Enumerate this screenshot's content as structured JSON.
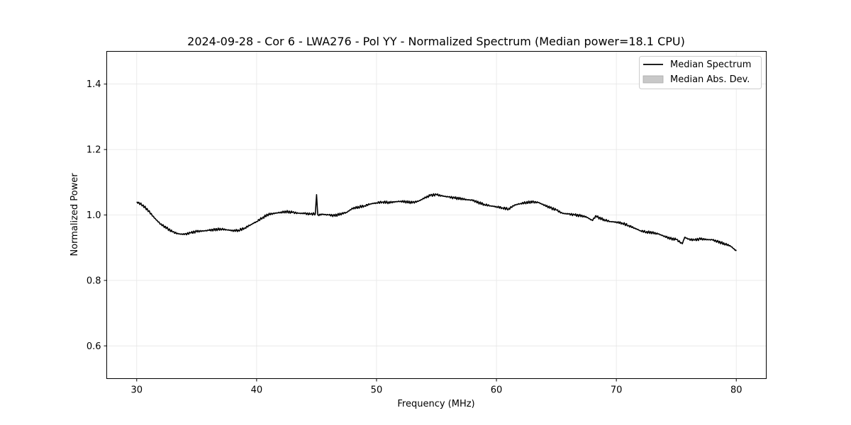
{
  "chart_data": {
    "type": "line",
    "title": "2024-09-28 - Cor 6 - LWA276 - Pol YY - Normalized Spectrum (Median power=18.1 CPU)",
    "xlabel": "Frequency (MHz)",
    "ylabel": "Normalized Power",
    "xlim": [
      27.5,
      82.5
    ],
    "ylim": [
      0.5,
      1.5
    ],
    "xticks": [
      30,
      40,
      50,
      60,
      70,
      80
    ],
    "yticks": [
      0.6,
      0.8,
      1.0,
      1.2,
      1.4
    ],
    "ytick_labels": [
      "0.6",
      "0.8",
      "1.0",
      "1.2",
      "1.4"
    ],
    "grid": true,
    "legend_position": "top-right",
    "legend": [
      {
        "label": "Median Spectrum",
        "kind": "line",
        "color": "#000000"
      },
      {
        "label": "Median Abs. Dev.",
        "kind": "band",
        "color": "#c8c8c8"
      }
    ],
    "series": [
      {
        "name": "Median Spectrum",
        "color": "#000000",
        "points": [
          [
            30.0,
            1.04
          ],
          [
            30.5,
            1.03
          ],
          [
            31.0,
            1.012
          ],
          [
            31.5,
            0.99
          ],
          [
            32.0,
            0.972
          ],
          [
            32.5,
            0.96
          ],
          [
            33.0,
            0.948
          ],
          [
            33.5,
            0.942
          ],
          [
            34.0,
            0.941
          ],
          [
            34.5,
            0.945
          ],
          [
            35.0,
            0.95
          ],
          [
            35.5,
            0.951
          ],
          [
            36.0,
            0.953
          ],
          [
            36.5,
            0.955
          ],
          [
            37.0,
            0.957
          ],
          [
            37.5,
            0.955
          ],
          [
            38.0,
            0.952
          ],
          [
            38.5,
            0.953
          ],
          [
            39.0,
            0.96
          ],
          [
            39.5,
            0.97
          ],
          [
            40.0,
            0.98
          ],
          [
            40.5,
            0.992
          ],
          [
            41.0,
            1.002
          ],
          [
            41.5,
            1.005
          ],
          [
            42.0,
            1.008
          ],
          [
            42.5,
            1.01
          ],
          [
            43.0,
            1.008
          ],
          [
            43.5,
            1.005
          ],
          [
            44.0,
            1.005
          ],
          [
            44.5,
            1.002
          ],
          [
            44.9,
            1.004
          ],
          [
            45.0,
            1.062
          ],
          [
            45.1,
            1.0
          ],
          [
            45.5,
            1.002
          ],
          [
            46.0,
            1.0
          ],
          [
            46.5,
            0.998
          ],
          [
            47.0,
            1.003
          ],
          [
            47.5,
            1.008
          ],
          [
            48.0,
            1.02
          ],
          [
            48.5,
            1.024
          ],
          [
            49.0,
            1.028
          ],
          [
            49.5,
            1.034
          ],
          [
            50.0,
            1.037
          ],
          [
            50.5,
            1.04
          ],
          [
            51.0,
            1.038
          ],
          [
            51.5,
            1.04
          ],
          [
            52.0,
            1.042
          ],
          [
            52.5,
            1.04
          ],
          [
            53.0,
            1.038
          ],
          [
            53.5,
            1.042
          ],
          [
            54.0,
            1.052
          ],
          [
            54.5,
            1.06
          ],
          [
            55.0,
            1.062
          ],
          [
            55.5,
            1.058
          ],
          [
            56.0,
            1.055
          ],
          [
            56.5,
            1.052
          ],
          [
            57.0,
            1.05
          ],
          [
            57.5,
            1.047
          ],
          [
            58.0,
            1.045
          ],
          [
            58.5,
            1.038
          ],
          [
            59.0,
            1.032
          ],
          [
            59.5,
            1.028
          ],
          [
            60.0,
            1.025
          ],
          [
            60.5,
            1.022
          ],
          [
            61.0,
            1.018
          ],
          [
            61.5,
            1.03
          ],
          [
            62.0,
            1.035
          ],
          [
            62.5,
            1.038
          ],
          [
            63.0,
            1.04
          ],
          [
            63.5,
            1.038
          ],
          [
            64.0,
            1.03
          ],
          [
            64.5,
            1.022
          ],
          [
            65.0,
            1.015
          ],
          [
            65.5,
            1.005
          ],
          [
            66.0,
            1.003
          ],
          [
            66.5,
            1.0
          ],
          [
            67.0,
            0.998
          ],
          [
            67.5,
            0.994
          ],
          [
            68.0,
            0.983
          ],
          [
            68.3,
            0.998
          ],
          [
            68.5,
            0.992
          ],
          [
            69.0,
            0.985
          ],
          [
            69.5,
            0.98
          ],
          [
            70.0,
            0.978
          ],
          [
            70.5,
            0.975
          ],
          [
            71.0,
            0.968
          ],
          [
            71.5,
            0.96
          ],
          [
            72.0,
            0.952
          ],
          [
            72.5,
            0.948
          ],
          [
            73.0,
            0.946
          ],
          [
            73.5,
            0.942
          ],
          [
            74.0,
            0.935
          ],
          [
            74.5,
            0.928
          ],
          [
            75.0,
            0.925
          ],
          [
            75.5,
            0.912
          ],
          [
            75.7,
            0.932
          ],
          [
            76.0,
            0.926
          ],
          [
            76.5,
            0.923
          ],
          [
            77.0,
            0.927
          ],
          [
            77.5,
            0.925
          ],
          [
            78.0,
            0.924
          ],
          [
            78.5,
            0.918
          ],
          [
            79.0,
            0.912
          ],
          [
            79.5,
            0.906
          ],
          [
            80.0,
            0.89
          ]
        ]
      }
    ]
  },
  "colors": {
    "background": "#ffffff",
    "axes": "#000000",
    "grid": "#e6e6e6",
    "band": "#c8c8c8"
  }
}
